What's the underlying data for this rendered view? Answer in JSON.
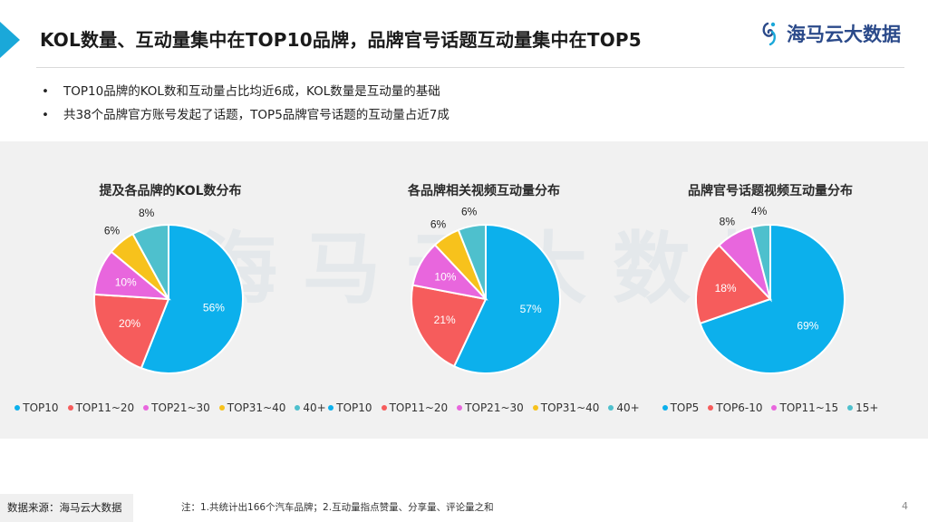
{
  "header": {
    "title": "KOL数量、互动量集中在TOP10品牌，品牌官号话题互动量集中在TOP5",
    "logo_text": "海马云大数据"
  },
  "bullets": [
    "TOP10品牌的KOL数和互动量占比均近6成，KOL数量是互动量的基础",
    "共38个品牌官方账号发起了话题，TOP5品牌官号话题的互动量占近7成"
  ],
  "bullet_symbol": "•",
  "watermark": "海马云大数据",
  "colors": {
    "blue": "#0cb0ec",
    "red": "#f65c5c",
    "pink": "#e866dd",
    "yellow": "#f7c21c",
    "teal": "#4ec0cd",
    "accent": "#1aa8d9"
  },
  "chart_data": [
    {
      "type": "pie",
      "title": "提及各品牌的KOL数分布",
      "categories": [
        "TOP10",
        "TOP11~20",
        "TOP21~30",
        "TOP31~40",
        "40+"
      ],
      "values": [
        56,
        20,
        10,
        6,
        8
      ],
      "labels": [
        "56%",
        "20%",
        "10%",
        "6%",
        "8%"
      ],
      "colors": [
        "#0cb0ec",
        "#f65c5c",
        "#e866dd",
        "#f7c21c",
        "#4ec0cd"
      ],
      "legend": "bottom"
    },
    {
      "type": "pie",
      "title": "各品牌相关视频互动量分布",
      "categories": [
        "TOP10",
        "TOP11~20",
        "TOP21~30",
        "TOP31~40",
        "40+"
      ],
      "values": [
        57,
        21,
        10,
        6,
        6
      ],
      "labels": [
        "57%",
        "21%",
        "10%",
        "6%",
        "6%"
      ],
      "colors": [
        "#0cb0ec",
        "#f65c5c",
        "#e866dd",
        "#f7c21c",
        "#4ec0cd"
      ],
      "legend": "bottom"
    },
    {
      "type": "pie",
      "title": "品牌官号话题视频互动量分布",
      "categories": [
        "TOP5",
        "TOP6-10",
        "TOP11~15",
        "15+"
      ],
      "values": [
        69,
        18,
        8,
        4
      ],
      "labels": [
        "69%",
        "18%",
        "8%",
        "4%"
      ],
      "colors": [
        "#0cb0ec",
        "#f65c5c",
        "#e866dd",
        "#4ec0cd"
      ],
      "legend": "bottom"
    }
  ],
  "footer": {
    "source": "数据来源：海马云大数据",
    "note": "注：1.共统计出166个汽车品牌；2.互动量指点赞量、分享量、评论量之和",
    "page": "4"
  }
}
